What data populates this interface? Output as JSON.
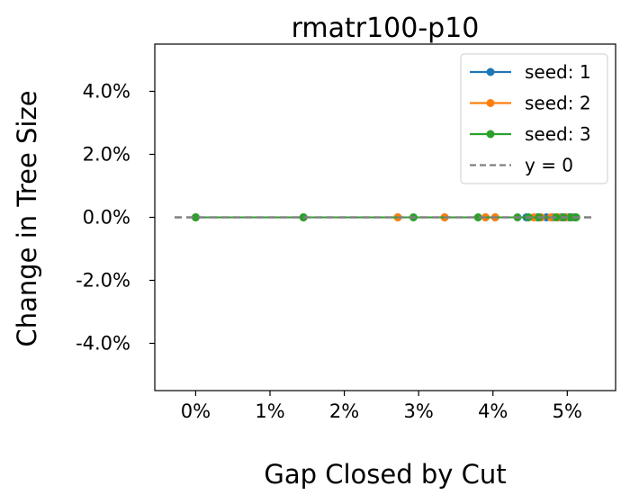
{
  "chart_data": {
    "type": "line",
    "title": "rmatr100-p10",
    "xlabel": "Gap Closed by Cut",
    "ylabel": "Change in Tree Size",
    "xlim": [
      -0.0055,
      0.0565
    ],
    "ylim": [
      -0.055,
      0.055
    ],
    "xticks": [
      0,
      0.01,
      0.02,
      0.03,
      0.04,
      0.05
    ],
    "xtick_labels": [
      "0%",
      "1%",
      "2%",
      "3%",
      "4%",
      "5%"
    ],
    "yticks": [
      0.04,
      0.02,
      0,
      -0.02,
      -0.04
    ],
    "ytick_labels": [
      "4.0%",
      "2.0%",
      "0.0%",
      "-2.0%",
      "-4.0%"
    ],
    "grid": false,
    "legend_position": "top-right",
    "series": [
      {
        "name": "seed: 1",
        "color": "#1f77b4",
        "marker": "circle",
        "x": [
          0,
          0.0145,
          0.0272,
          0.0335,
          0.039,
          0.0403,
          0.0445,
          0.046,
          0.0472,
          0.048,
          0.0492,
          0.0502,
          0.051
        ],
        "y": [
          0,
          0,
          0,
          0,
          0,
          0,
          0,
          0,
          0,
          0,
          0,
          0,
          0
        ]
      },
      {
        "name": "seed: 2",
        "color": "#ff7f0e",
        "marker": "circle",
        "x": [
          0,
          0.0145,
          0.0272,
          0.0335,
          0.039,
          0.0403,
          0.0455,
          0.0465,
          0.0478,
          0.0488,
          0.0498,
          0.0506
        ],
        "y": [
          0,
          0,
          0,
          0,
          0,
          0,
          0,
          0,
          0,
          0,
          0,
          0
        ]
      },
      {
        "name": "seed: 3",
        "color": "#2ca02c",
        "marker": "circle",
        "x": [
          0,
          0.0145,
          0.0293,
          0.038,
          0.0433,
          0.0448,
          0.0462,
          0.0485,
          0.0495,
          0.0505,
          0.0512
        ],
        "y": [
          0,
          0,
          0,
          0,
          0,
          0,
          0,
          0,
          0,
          0,
          0
        ]
      }
    ],
    "reference_line": {
      "name": "y = 0",
      "y": 0,
      "color": "#808080",
      "style": "dashed"
    }
  }
}
